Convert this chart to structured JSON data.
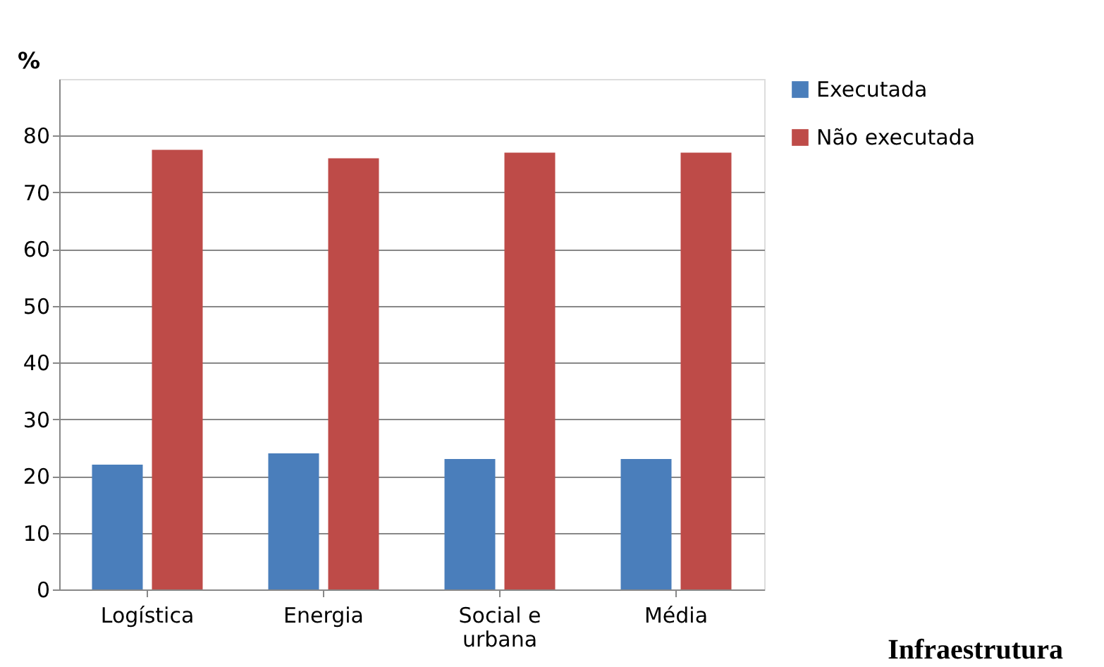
{
  "chart_data": {
    "type": "bar",
    "ylabel": "%",
    "annotations": [
      "Infraestrutura"
    ],
    "categories": [
      "Logística",
      "Energia",
      "Social e urbana",
      "Média"
    ],
    "series": [
      {
        "name": "Executada",
        "color": "#4a7ebb",
        "values": [
          22,
          24,
          23,
          23
        ]
      },
      {
        "name": "Não executada",
        "color": "#be4b48",
        "values": [
          77.5,
          76,
          77,
          77
        ]
      }
    ],
    "ylim": [
      0,
      90
    ],
    "yticks": [
      0,
      10,
      20,
      30,
      40,
      50,
      60,
      70,
      80
    ],
    "grid": "y",
    "legend": "right"
  }
}
